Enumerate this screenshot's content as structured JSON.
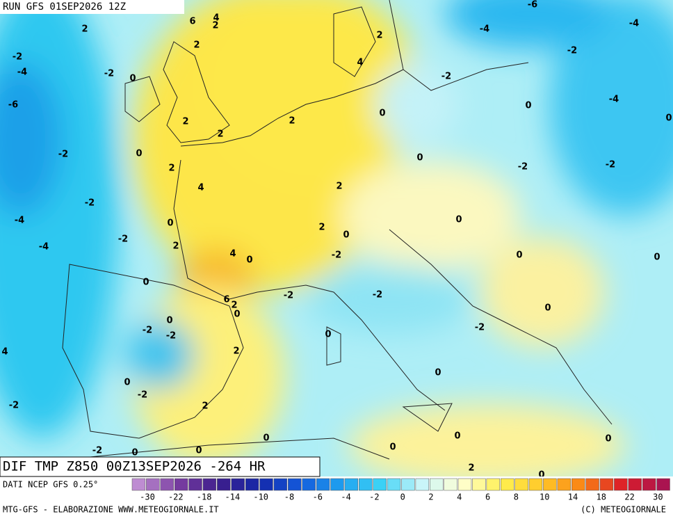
{
  "header": {
    "run": "RUN GFS 01SEP2026 12Z"
  },
  "map": {
    "title": "DIF TMP Z850 00Z13SEP2026 -264 HR",
    "contour_labels": [
      2,
      4,
      6,
      2,
      -2,
      -4,
      -2,
      0,
      2,
      2,
      4,
      -6,
      2,
      2,
      2,
      0,
      -2,
      0,
      -4,
      -4,
      -6,
      -4,
      -2,
      0,
      -2,
      0,
      2,
      4,
      2,
      0,
      -2,
      -2,
      -2,
      -4,
      0,
      2,
      0,
      0,
      -2,
      2,
      4,
      0,
      -2,
      0,
      0,
      -4,
      0,
      6,
      2,
      0,
      -2,
      -2,
      0,
      0,
      -2,
      -2,
      0,
      -2,
      4,
      2,
      0,
      0,
      -2,
      -2,
      2,
      0,
      0,
      0,
      0,
      -2,
      0,
      0,
      2,
      0
    ]
  },
  "footer": {
    "source": "DATI NCEP GFS 0.25°",
    "credit": "MTG-GFS - ELABORAZIONE WWW.METEOGIORNALE.IT",
    "copyright": "(C) METEOGIORNALE",
    "colorbar_labels": [
      -30,
      -22,
      -18,
      -14,
      -10,
      -8,
      -6,
      -4,
      -2,
      0,
      2,
      4,
      6,
      8,
      10,
      14,
      18,
      22,
      30
    ]
  }
}
